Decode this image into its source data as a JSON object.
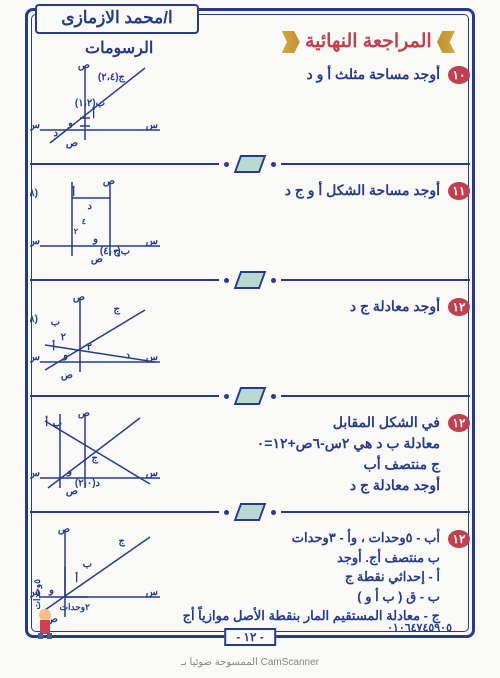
{
  "teacher": "ا/محمد الازمازى",
  "main_title": "المراجعة النهائية",
  "drawings": "الرسومات",
  "questions": [
    {
      "num": "١٠",
      "text": "أوجد مساحة مثلث أ و د",
      "graph": 1
    },
    {
      "num": "١١",
      "text": "أوجد مساحة الشكل أ و ج د",
      "graph": 2
    },
    {
      "num": "١٢",
      "text": "أوجد معادلة ج د",
      "graph": 3
    },
    {
      "num": "١٢",
      "text": "في الشكل المقابل<br>معادلة ب د هي ٢س-٦ص+١٢=٠<br>ج منتصف أب<br>أوجد معادلة ج د",
      "graph": 4
    },
    {
      "num": "١٢",
      "text": "أب - ٥وحدات ، وأ - ٣وحدات<br>ب منتصف أج. أوجد<br>أ - إحداثي نقطة ج<br>ب - ق ( ب أ و )<br>ج - معادلة المستقيم المار بنقطة الأصل موازياً أج",
      "graph": 5
    }
  ],
  "page_num": "- ١٢ -",
  "phone": "٠١٠٦٤٧٤٥٩٠٥",
  "footer": "الممسوحة ضوئيا بـ CamScanner",
  "colors": {
    "primary": "#2a3a8a",
    "accent": "#c04050",
    "deco": "#d4a840"
  }
}
